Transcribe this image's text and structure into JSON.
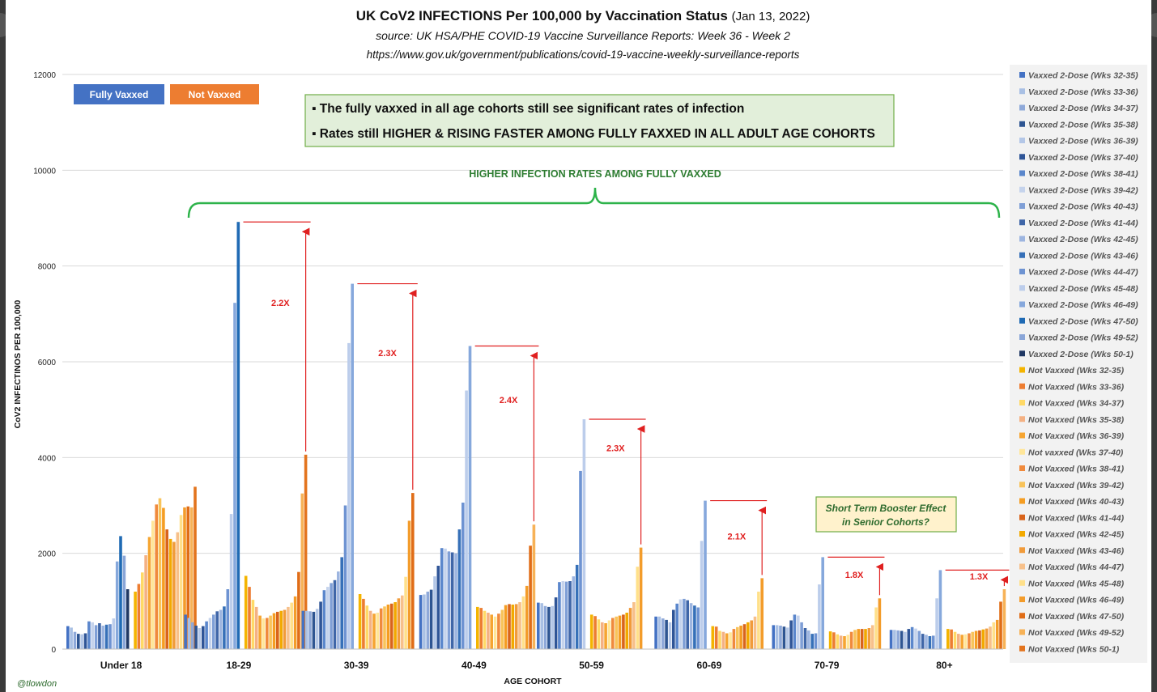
{
  "chart_data": {
    "type": "bar",
    "title": "UK CoV2 INFECTIONS Per 100,000 by Vaccination Status",
    "title_date": "(Jan 13, 2022)",
    "subtitle": "source:  UK HSA/PHE COVID-19 Vaccine Surveillance Reports:  Week 36 - Week 2",
    "url": "https://www.gov.uk/government/publications/covid-19-vaccine-weekly-surveillance-reports",
    "xlabel": "AGE COHORT",
    "ylabel": "CoV2 INFECTINOS  PER 100,000",
    "ylim": [
      0,
      12000
    ],
    "yticks": [
      0,
      2000,
      4000,
      6000,
      8000,
      10000,
      12000
    ],
    "grid": true,
    "legend_position": "right",
    "categories": [
      "Under 18",
      "18-29",
      "30-39",
      "40-49",
      "50-59",
      "60-69",
      "70-79",
      "80+"
    ],
    "series_legend": [
      "Vaxxed 2-Dose (Wks 32-35)",
      "Vaxxed 2-Dose (Wks 33-36)",
      "Vaxxed 2-Dose (Wks 34-37)",
      "Vaxxed 2-Dose (Wks 35-38)",
      "Vaxxed 2-Dose (Wks 36-39)",
      "Vaxxed 2-Dose (Wks 37-40)",
      "Vaxxed 2-Dose (Wks 38-41)",
      "Vaxxed 2-Dose (Wks 39-42)",
      "Vaxxed 2-Dose (Wks 40-43)",
      "Vaxxed 2-Dose (Wks 41-44)",
      "Vaxxed 2-Dose (Wks 42-45)",
      "Vaxxed 2-Dose (Wks 43-46)",
      "Vaxxed 2-Dose (Wks 44-47)",
      "Vaxxed 2-Dose (Wks 45-48)",
      "Vaxxed 2-Dose (Wks 46-49)",
      "Vaxxed 2-Dose (Wks 47-50)",
      "Vaxxed 2-Dose (Wks 49-52)",
      "Vaxxed 2-Dose (Wks 50-1)",
      "Not Vaxxed (Wks 32-35)",
      "Not Vaxxed (Wks 33-36)",
      "Not Vaxxed (Wks 34-37)",
      "Not Vaxxed (Wks 35-38)",
      "Not Vaxxed (Wks 36-39)",
      "Not vaxxed (Wks 37-40)",
      "Not Vaxxed (Wks 38-41)",
      "Not Vaxxed (Wks 39-42)",
      "Not Vaxxed (Wks 40-43)",
      "Not Vaxxed (Wks 41-44)",
      "Not Vaxxed (Wks 42-45)",
      "Not Vaxxed (Wks 43-46)",
      "Not Vaxxed (Wks 44-47)",
      "Not Vaxxed (Wks 45-48)",
      "Not Vaxxed (Wks 46-49)",
      "Not Vaxxed (Wks 47-50)",
      "Not Vaxxed (Wks 49-52)",
      "Not Vaxxed (Wks 50-1)"
    ],
    "vaxxed_colors": [
      "#4472c4",
      "#a9c0e4",
      "#8fa9d9",
      "#2e5592",
      "#b4c7e7",
      "#2f5597",
      "#5b87cc",
      "#c5d3ec",
      "#7f9fd6",
      "#3f66a8",
      "#9db5e0",
      "#3670b8",
      "#6e93d2",
      "#bccdeb",
      "#86a8dc",
      "#1f6ab4",
      "#8aa6d8",
      "#203864"
    ],
    "not_vaxxed_colors": [
      "#f4b400",
      "#ed7d31",
      "#ffd966",
      "#f4b183",
      "#f6a531",
      "#ffe699",
      "#f08a3c",
      "#f8c35a",
      "#f59d22",
      "#d9641b",
      "#f2a900",
      "#f19b3a",
      "#f7c08a",
      "#ffe08a",
      "#f39c2b",
      "#e06d17",
      "#f7b257",
      "#e3741e"
    ],
    "groups": [
      {
        "name": "Under 18",
        "vaxxed": [
          480,
          450,
          360,
          320,
          310,
          330,
          580,
          560,
          500,
          540,
          490,
          510,
          520,
          640,
          1830,
          2360,
          1950,
          1250
        ],
        "not_vaxxed": [
          1200,
          1360,
          1600,
          1960,
          2340,
          2680,
          3020,
          3150,
          2950,
          2500,
          2300,
          2240,
          2440,
          2800,
          2960,
          2980,
          2960,
          3390
        ]
      },
      {
        "name": "18-29",
        "vaxxed": [
          720,
          650,
          560,
          490,
          440,
          480,
          580,
          650,
          720,
          790,
          820,
          890,
          1250,
          2820,
          7230,
          8920,
          0,
          0
        ],
        "not_vaxxed": [
          1530,
          1300,
          1030,
          880,
          700,
          640,
          650,
          700,
          750,
          780,
          800,
          820,
          880,
          970,
          1100,
          1610,
          3250,
          4060
        ]
      },
      {
        "name": "30-39",
        "vaxxed": [
          800,
          800,
          790,
          780,
          840,
          990,
          1230,
          1300,
          1380,
          1440,
          1620,
          1920,
          3000,
          6390,
          7630,
          0,
          0,
          0
        ],
        "not_vaxxed": [
          1150,
          1050,
          910,
          800,
          740,
          760,
          850,
          890,
          930,
          950,
          980,
          1060,
          1120,
          1510,
          2680,
          3260,
          0,
          0
        ]
      },
      {
        "name": "40-49",
        "vaxxed": [
          1130,
          1140,
          1200,
          1240,
          1520,
          1740,
          2110,
          2100,
          2040,
          2020,
          2000,
          2500,
          3060,
          5400,
          6330,
          0,
          0,
          0
        ],
        "not_vaxxed": [
          880,
          860,
          800,
          760,
          720,
          680,
          740,
          820,
          920,
          940,
          930,
          940,
          980,
          1100,
          1320,
          2160,
          2600,
          0
        ]
      },
      {
        "name": "50-59",
        "vaxxed": [
          970,
          960,
          900,
          880,
          900,
          1080,
          1400,
          1420,
          1410,
          1420,
          1520,
          1760,
          3720,
          4800,
          0,
          0,
          0,
          0
        ],
        "not_vaxxed": [
          720,
          690,
          620,
          560,
          540,
          600,
          650,
          680,
          700,
          720,
          760,
          860,
          980,
          1720,
          2120,
          0,
          0,
          0
        ]
      },
      {
        "name": "60-69",
        "vaxxed": [
          680,
          680,
          640,
          610,
          560,
          820,
          950,
          1040,
          1050,
          1020,
          960,
          910,
          870,
          2260,
          3100,
          0,
          0,
          0
        ],
        "not_vaxxed": [
          480,
          470,
          380,
          360,
          330,
          350,
          420,
          460,
          490,
          520,
          560,
          600,
          680,
          1200,
          1480,
          0,
          0,
          0
        ]
      },
      {
        "name": "70-79",
        "vaxxed": [
          500,
          500,
          490,
          470,
          450,
          600,
          720,
          700,
          560,
          440,
          390,
          320,
          330,
          1350,
          1920,
          0,
          0,
          0
        ],
        "not_vaxxed": [
          370,
          350,
          310,
          280,
          270,
          300,
          360,
          400,
          420,
          420,
          420,
          440,
          500,
          870,
          1060,
          0,
          0,
          0
        ]
      },
      {
        "name": "80+",
        "vaxxed": [
          400,
          400,
          390,
          380,
          360,
          420,
          460,
          430,
          380,
          320,
          300,
          270,
          280,
          1060,
          1650,
          0,
          0,
          0
        ],
        "not_vaxxed": [
          420,
          410,
          360,
          320,
          300,
          310,
          330,
          360,
          380,
          390,
          410,
          430,
          470,
          560,
          610,
          990,
          1250,
          0
        ]
      }
    ],
    "ratio_labels": [
      {
        "group": "18-29",
        "label": "2.2X"
      },
      {
        "group": "30-39",
        "label": "2.3X"
      },
      {
        "group": "40-49",
        "label": "2.4X"
      },
      {
        "group": "50-59",
        "label": "2.3X"
      },
      {
        "group": "60-69",
        "label": "2.1X"
      },
      {
        "group": "70-79",
        "label": "1.8X"
      },
      {
        "group": "80+",
        "label": "1.3X"
      }
    ]
  },
  "legend_boxes": {
    "vaxxed": "Fully Vaxxed",
    "not_vaxxed": "Not Vaxxed",
    "vaxxed_color": "#4472c4",
    "not_vaxxed_color": "#ed7d31"
  },
  "notes": {
    "line1": "▪ The fully vaxxed in all age cohorts still see significant rates of infection",
    "line2": "▪ Rates still HIGHER & RISING FASTER AMONG FULLY FAXXED IN ALL ADULT AGE COHORTS",
    "bracket_label": "HIGHER INFECTION RATES AMONG FULLY VAXXED",
    "booster1": "Short Term Booster Effect",
    "booster2": "in Senior Cohorts?"
  },
  "credit": "@tlowdon",
  "colors": {
    "grid": "#d9d9d9",
    "arrow": "#e02020",
    "bracket": "#2db34a",
    "note_bg": "#e2efda",
    "note_border": "#70ad47",
    "booster_bg": "#fff2cc"
  }
}
